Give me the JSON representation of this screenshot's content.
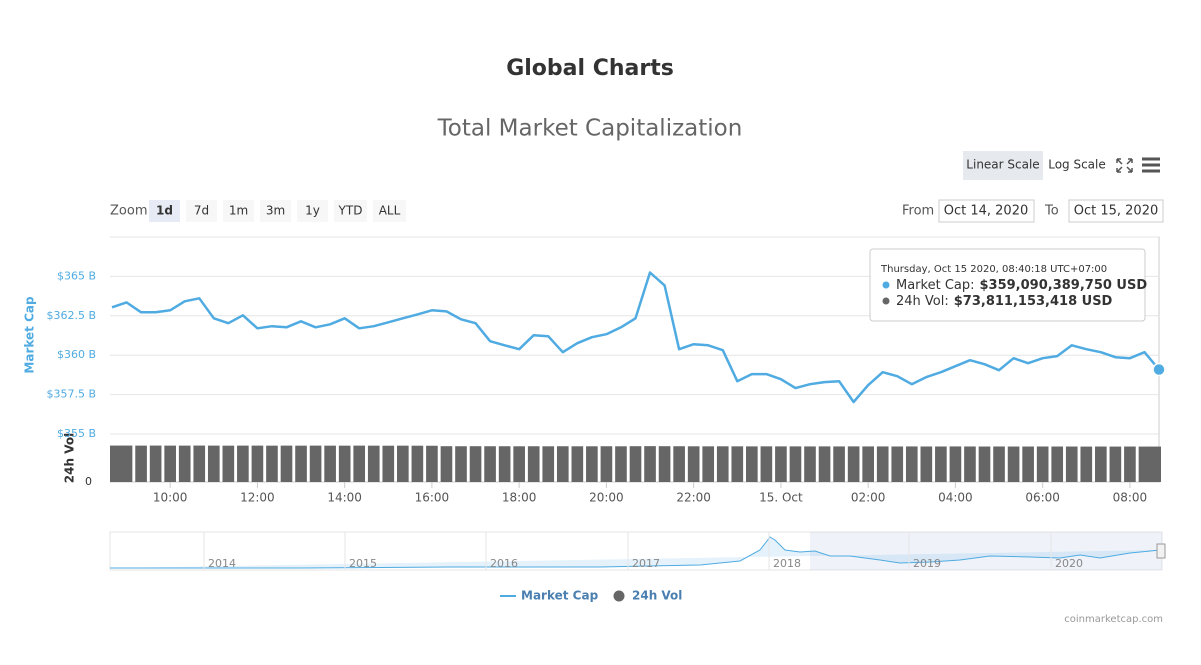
{
  "header": {
    "title": "Global Charts"
  },
  "toolbar": {
    "scales": [
      "Linear Scale",
      "Log Scale"
    ],
    "active_scale": "Linear Scale",
    "zoom_label": "Zoom",
    "zoom_options": [
      "1d",
      "7d",
      "1m",
      "3m",
      "1y",
      "YTD",
      "ALL"
    ],
    "active_zoom": "1d",
    "from_label": "From",
    "from": "Oct 14, 2020",
    "to_label": "To",
    "to": "Oct 15, 2020"
  },
  "chart_data": {
    "type": "line",
    "title": "Total Market Capitalization",
    "x": [
      "2020-10-14 08:40",
      "2020-10-14 09:00",
      "2020-10-14 09:20",
      "2020-10-14 09:40",
      "2020-10-14 10:00",
      "2020-10-14 10:20",
      "2020-10-14 10:40",
      "2020-10-14 11:00",
      "2020-10-14 11:20",
      "2020-10-14 11:40",
      "2020-10-14 12:00",
      "2020-10-14 12:20",
      "2020-10-14 12:40",
      "2020-10-14 13:00",
      "2020-10-14 13:20",
      "2020-10-14 13:40",
      "2020-10-14 14:00",
      "2020-10-14 14:20",
      "2020-10-14 14:40",
      "2020-10-14 15:00",
      "2020-10-14 15:20",
      "2020-10-14 15:40",
      "2020-10-14 16:00",
      "2020-10-14 16:20",
      "2020-10-14 16:40",
      "2020-10-14 17:00",
      "2020-10-14 17:20",
      "2020-10-14 17:40",
      "2020-10-14 18:00",
      "2020-10-14 18:20",
      "2020-10-14 18:40",
      "2020-10-14 19:00",
      "2020-10-14 19:20",
      "2020-10-14 19:40",
      "2020-10-14 20:00",
      "2020-10-14 20:20",
      "2020-10-14 20:40",
      "2020-10-14 21:00",
      "2020-10-14 21:20",
      "2020-10-14 21:40",
      "2020-10-14 22:00",
      "2020-10-14 22:20",
      "2020-10-14 22:40",
      "2020-10-14 23:00",
      "2020-10-14 23:20",
      "2020-10-14 23:40",
      "2020-10-15 00:00",
      "2020-10-15 00:20",
      "2020-10-15 00:40",
      "2020-10-15 01:00",
      "2020-10-15 01:20",
      "2020-10-15 01:40",
      "2020-10-15 02:00",
      "2020-10-15 02:20",
      "2020-10-15 02:40",
      "2020-10-15 03:00",
      "2020-10-15 03:20",
      "2020-10-15 03:40",
      "2020-10-15 04:00",
      "2020-10-15 04:20",
      "2020-10-15 04:40",
      "2020-10-15 05:00",
      "2020-10-15 05:20",
      "2020-10-15 05:40",
      "2020-10-15 06:00",
      "2020-10-15 06:20",
      "2020-10-15 06:40",
      "2020-10-15 07:00",
      "2020-10-15 07:20",
      "2020-10-15 07:40",
      "2020-10-15 08:00",
      "2020-10-15 08:20",
      "2020-10-15 08:40"
    ],
    "series": [
      {
        "name": "Market Cap",
        "color": "#4fabe1",
        "values": [
          363.04,
          363.35,
          362.72,
          362.72,
          362.85,
          363.42,
          363.61,
          362.34,
          362.03,
          362.53,
          361.71,
          361.84,
          361.77,
          362.15,
          361.77,
          361.96,
          362.34,
          361.71,
          361.84,
          362.09,
          362.34,
          362.59,
          362.85,
          362.78,
          362.28,
          362.03,
          360.89,
          360.63,
          360.38,
          361.27,
          361.2,
          360.19,
          360.76,
          361.14,
          361.33,
          361.77,
          362.34,
          365.25,
          364.43,
          360.38,
          360.7,
          360.63,
          360.32,
          358.35,
          358.8,
          358.8,
          358.48,
          357.91,
          358.16,
          358.29,
          358.35,
          357.03,
          358.1,
          358.92,
          358.67,
          358.16,
          358.61,
          358.92,
          359.3,
          359.68,
          359.43,
          359.05,
          359.81,
          359.49,
          359.81,
          359.94,
          360.63,
          360.38,
          360.19,
          359.87,
          359.81,
          360.19,
          359.09038975
        ]
      },
      {
        "name": "24h Vol",
        "color": "#666666",
        "type": "bar",
        "axis": "y2",
        "values": [
          75.9,
          75.9,
          75.8,
          75.9,
          75.8,
          75.8,
          75.9,
          75.8,
          75.7,
          75.8,
          75.8,
          75.7,
          75.8,
          75.7,
          75.8,
          75.7,
          75.7,
          75.8,
          75.7,
          75.6,
          75.7,
          75.6,
          75.5,
          74.6,
          74.5,
          74.6,
          74.5,
          74.5,
          74.4,
          74.5,
          74.4,
          74.5,
          74.4,
          74.4,
          74.5,
          74.4,
          74.6,
          74.7,
          74.6,
          74.5,
          74.4,
          74.3,
          74.4,
          74.3,
          74.2,
          74.3,
          74.2,
          74.2,
          74.1,
          74.2,
          74.1,
          74.2,
          74.1,
          74.1,
          74.0,
          74.1,
          74.0,
          74.0,
          74.1,
          74.0,
          73.9,
          74.0,
          73.9,
          73.9,
          74.0,
          73.9,
          73.9,
          73.8,
          73.9,
          73.8,
          73.9,
          73.8,
          73.811153418
        ]
      }
    ],
    "xlim": [
      "2020-10-14 08:40",
      "2020-10-15 08:40"
    ],
    "xticks": [
      {
        "value": "2020-10-14 10:00",
        "label": "10:00"
      },
      {
        "value": "2020-10-14 12:00",
        "label": "12:00"
      },
      {
        "value": "2020-10-14 14:00",
        "label": "14:00"
      },
      {
        "value": "2020-10-14 16:00",
        "label": "16:00"
      },
      {
        "value": "2020-10-14 18:00",
        "label": "18:00"
      },
      {
        "value": "2020-10-14 20:00",
        "label": "20:00"
      },
      {
        "value": "2020-10-14 22:00",
        "label": "22:00"
      },
      {
        "value": "2020-10-15 00:00",
        "label": "15. Oct"
      },
      {
        "value": "2020-10-15 02:00",
        "label": "02:00"
      },
      {
        "value": "2020-10-15 04:00",
        "label": "04:00"
      },
      {
        "value": "2020-10-15 06:00",
        "label": "06:00"
      },
      {
        "value": "2020-10-15 08:00",
        "label": "08:00"
      }
    ],
    "y_label": "Market Cap",
    "ylim": [
      355,
      367.5
    ],
    "yticks": [
      {
        "value": 355,
        "label": "$355 B"
      },
      {
        "value": 357.5,
        "label": "$357.5 B"
      },
      {
        "value": 360,
        "label": "$360 B"
      },
      {
        "value": 362.5,
        "label": "$362.5 B"
      },
      {
        "value": 365,
        "label": "$365 B"
      }
    ],
    "y2_label": "24h Vol",
    "y2lim": [
      0,
      100
    ],
    "y2ticks": [
      0
    ],
    "grid": true,
    "tooltip": {
      "date": "Thursday, Oct 15 2020, 08:40:18 UTC+07:00",
      "rows": [
        {
          "label": "Market Cap:",
          "value": "$359,090,389,750 USD"
        },
        {
          "label": "24h Vol:",
          "value": "$73,811,153,418 USD"
        }
      ]
    },
    "navigator": {
      "labels": [
        "2014",
        "2015",
        "2016",
        "2017",
        "2018",
        "2019",
        "2020"
      ]
    }
  },
  "footer": {
    "credit": "coinmarketcap.com"
  }
}
